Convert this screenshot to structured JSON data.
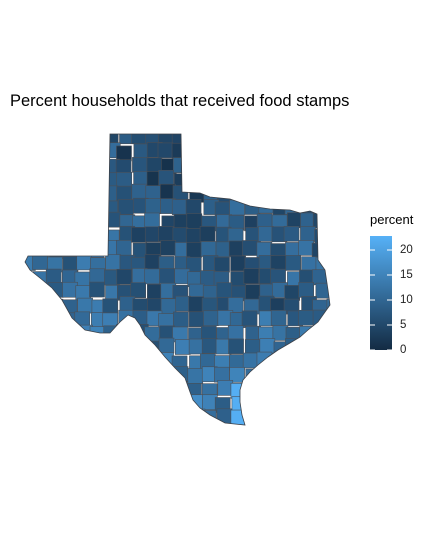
{
  "title": "Percent households that received food stamps",
  "legend": {
    "title": "percent",
    "range": [
      0,
      22.8
    ],
    "ticks": [
      0,
      5,
      10,
      15,
      20
    ],
    "tick_labels": [
      "0",
      "5",
      "10",
      "15",
      "20"
    ],
    "color_low": "#132B43",
    "color_high": "#56B1F7"
  },
  "map": {
    "region": "Texas",
    "unit": "county",
    "border_color": "#4a4f57",
    "scale": "continuous gradient (dark navy = low, light blue = high)"
  }
}
